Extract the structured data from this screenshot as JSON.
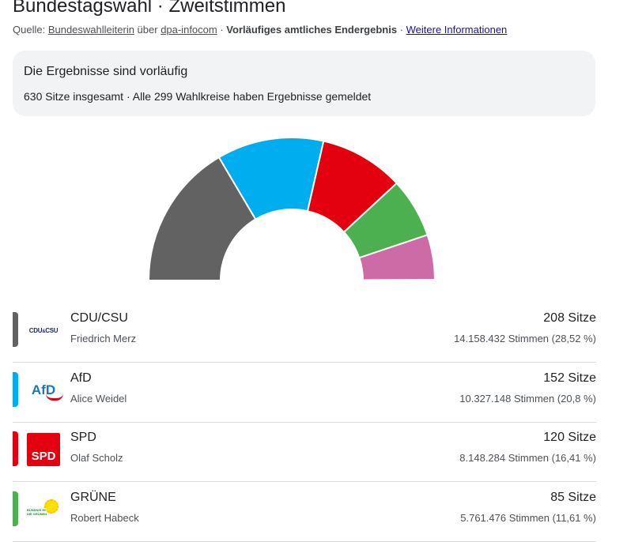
{
  "header": {
    "title": "Bundestagswahl · Zweitstimmen",
    "source_prefix": "Quelle: ",
    "source_link1": "Bundeswahlleiterin",
    "source_mid": " über ",
    "source_link2": "dpa-infocom",
    "source_sep1": " · ",
    "status": "Vorläufiges amtliches Endergebnis",
    "source_sep2": " · ",
    "more_link": "Weitere Informationen"
  },
  "notice": {
    "heading": "Die Ergebnisse sind vorläufig",
    "subtext": "630 Sitze insgesamt · Alle 299 Wahlkreise haben Ergebnisse gemeldet"
  },
  "chart_data": {
    "type": "pie",
    "variant": "semicircle-donut",
    "total": 630,
    "values": [
      208,
      152,
      120,
      85,
      64,
      1
    ],
    "colors": [
      "#626262",
      "#00aeef",
      "#e3000f",
      "#4caf50",
      "#cc6ba6",
      "#2b6cb0"
    ]
  },
  "parties": [
    {
      "name": "CDU/CSU",
      "leader": "Friedrich Merz",
      "seats": "208 Sitze",
      "votes": "14.158.432 Stimmen (28,52 %)",
      "color": "#626262",
      "logo": "CDU/CSU"
    },
    {
      "name": "AfD",
      "leader": "Alice Weidel",
      "seats": "152 Sitze",
      "votes": "10.327.148 Stimmen (20,8 %)",
      "color": "#00aeef",
      "logo": "AfD"
    },
    {
      "name": "SPD",
      "leader": "Olaf Scholz",
      "seats": "120 Sitze",
      "votes": "8.148.284 Stimmen (16,41 %)",
      "color": "#e3000f",
      "logo": "SPD"
    },
    {
      "name": "GRÜNE",
      "leader": "Robert Habeck",
      "seats": "85 Sitze",
      "votes": "5.761.476 Stimmen (11,61 %)",
      "color": "#4caf50",
      "logo": "BÜNDNIS 90 DIE GRÜNEN"
    }
  ]
}
